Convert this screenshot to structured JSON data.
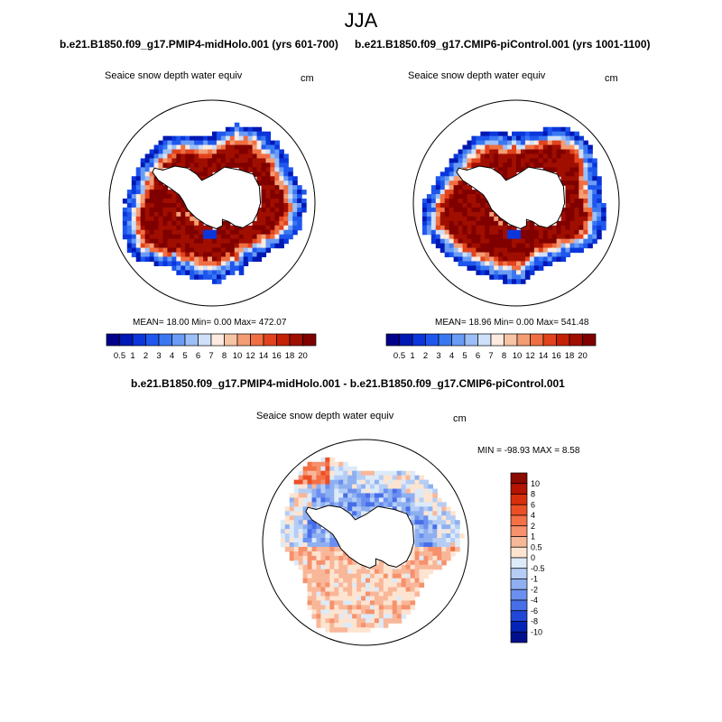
{
  "main_title": "JJA",
  "panels": {
    "left": {
      "title": "b.e21.B1850.f09_g17.PMIP4-midHolo.001 (yrs 601-700)",
      "subtitle": "Seaice snow depth water equiv",
      "units": "cm",
      "stats": "MEAN=  18.00  Min=    0.00  Max= 472.07"
    },
    "right": {
      "title": "b.e21.B1850.f09_g17.CMIP6-piControl.001 (yrs 1001-1100)",
      "subtitle": "Seaice snow depth water equiv",
      "units": "cm",
      "stats": "MEAN=  18.96  Min=    0.00  Max= 541.48"
    },
    "diff": {
      "title": "b.e21.B1850.f09_g17.PMIP4-midHolo.001 - b.e21.B1850.f09_g17.CMIP6-piControl.001",
      "subtitle": "Seaice snow depth water equiv",
      "units": "cm",
      "stats": "MIN = -98.93 MAX =   8.58"
    }
  },
  "chart_data": [
    {
      "type": "heatmap",
      "name": "PMIP4-midHolo.001 (yrs 601-700)",
      "variable": "Seaice snow depth water equiv",
      "units": "cm",
      "season": "JJA",
      "mean": 18.0,
      "min": 0.0,
      "max": 472.07,
      "colorbar_levels": [
        "0.5",
        "1",
        "2",
        "3",
        "4",
        "5",
        "6",
        "7",
        "8",
        "10",
        "12",
        "14",
        "16",
        "18",
        "20"
      ],
      "colorbar_colors": [
        "#00008c",
        "#0018b4",
        "#0a36dc",
        "#1f57ee",
        "#3a78f2",
        "#6a9cf5",
        "#9dbff7",
        "#cfe0fa",
        "#fdebe0",
        "#f8c4a6",
        "#f49c74",
        "#ef6f43",
        "#e2431d",
        "#c52106",
        "#a00e00",
        "#800000"
      ]
    },
    {
      "type": "heatmap",
      "name": "CMIP6-piControl.001 (yrs 1001-1100)",
      "variable": "Seaice snow depth water equiv",
      "units": "cm",
      "season": "JJA",
      "mean": 18.96,
      "min": 0.0,
      "max": 541.48,
      "colorbar_levels": [
        "0.5",
        "1",
        "2",
        "3",
        "4",
        "5",
        "6",
        "7",
        "8",
        "10",
        "12",
        "14",
        "16",
        "18",
        "20"
      ],
      "colorbar_colors": [
        "#00008c",
        "#0018b4",
        "#0a36dc",
        "#1f57ee",
        "#3a78f2",
        "#6a9cf5",
        "#9dbff7",
        "#cfe0fa",
        "#fdebe0",
        "#f8c4a6",
        "#f49c74",
        "#ef6f43",
        "#e2431d",
        "#c52106",
        "#a00e00",
        "#800000"
      ]
    },
    {
      "type": "heatmap",
      "name": "PMIP4-midHolo.001 - CMIP6-piControl.001",
      "variable": "Seaice snow depth water equiv",
      "units": "cm",
      "min": -98.93,
      "max": 8.58,
      "colorbar_levels": [
        "10",
        "8",
        "6",
        "4",
        "2",
        "1",
        "0.5",
        "0",
        "-0.5",
        "-1",
        "-2",
        "-4",
        "-6",
        "-8",
        "-10"
      ],
      "colorbar_colors": [
        "#8c0a00",
        "#b41400",
        "#d72e0c",
        "#ec4f26",
        "#f47046",
        "#f6916c",
        "#f9b799",
        "#fde4d0",
        "#ddeaf8",
        "#b5cdf5",
        "#8eaff0",
        "#6b8ff0",
        "#476ee8",
        "#2147d8",
        "#0424b8",
        "#00108c"
      ]
    }
  ]
}
